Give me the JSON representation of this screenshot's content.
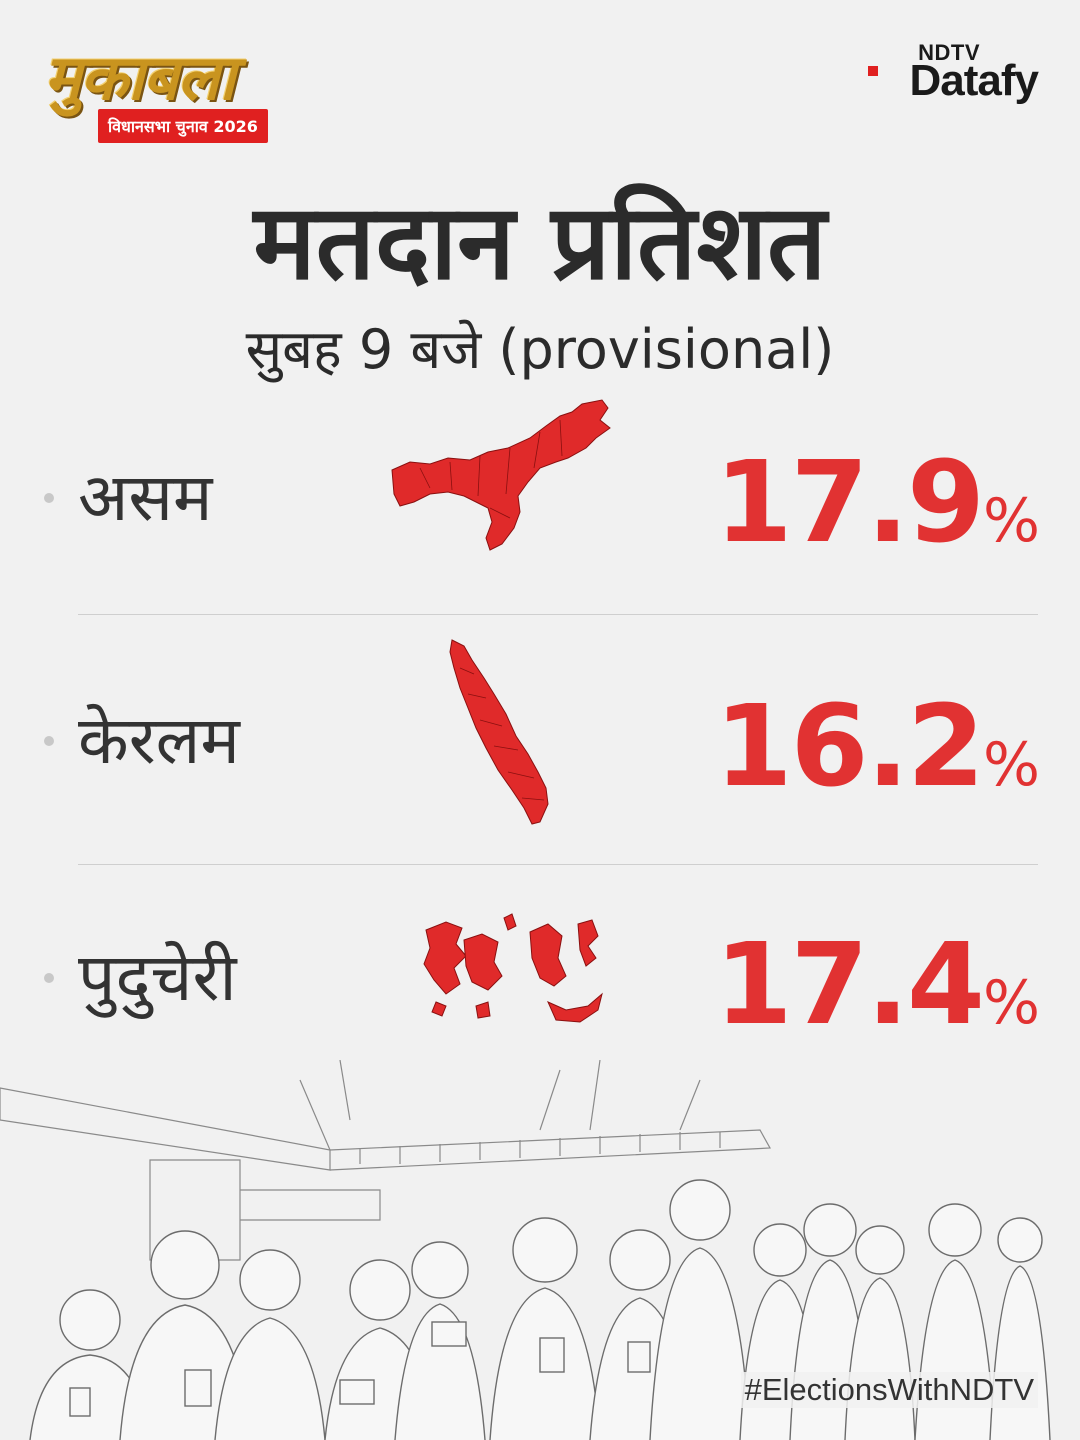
{
  "header": {
    "show_title": "मुकाबला",
    "show_badge": "विधानसभा चुनाव 2026",
    "brand_top": "NDTV",
    "brand_main": "Datafy"
  },
  "title": "मतदान प्रतिशत",
  "subtitle": "सुबह 9 बजे (provisional)",
  "states": [
    {
      "name": "असम",
      "value": "17.9",
      "unit": "%"
    },
    {
      "name": "केरलम",
      "value": "16.2",
      "unit": "%"
    },
    {
      "name": "पुदुचेरी",
      "value": "17.4",
      "unit": "%"
    }
  ],
  "hashtag": "#ElectionsWithNDTV",
  "colors": {
    "accent": "#e13232",
    "badge": "#e02020",
    "gold": "#c9941f",
    "background": "#f1f1f1"
  }
}
